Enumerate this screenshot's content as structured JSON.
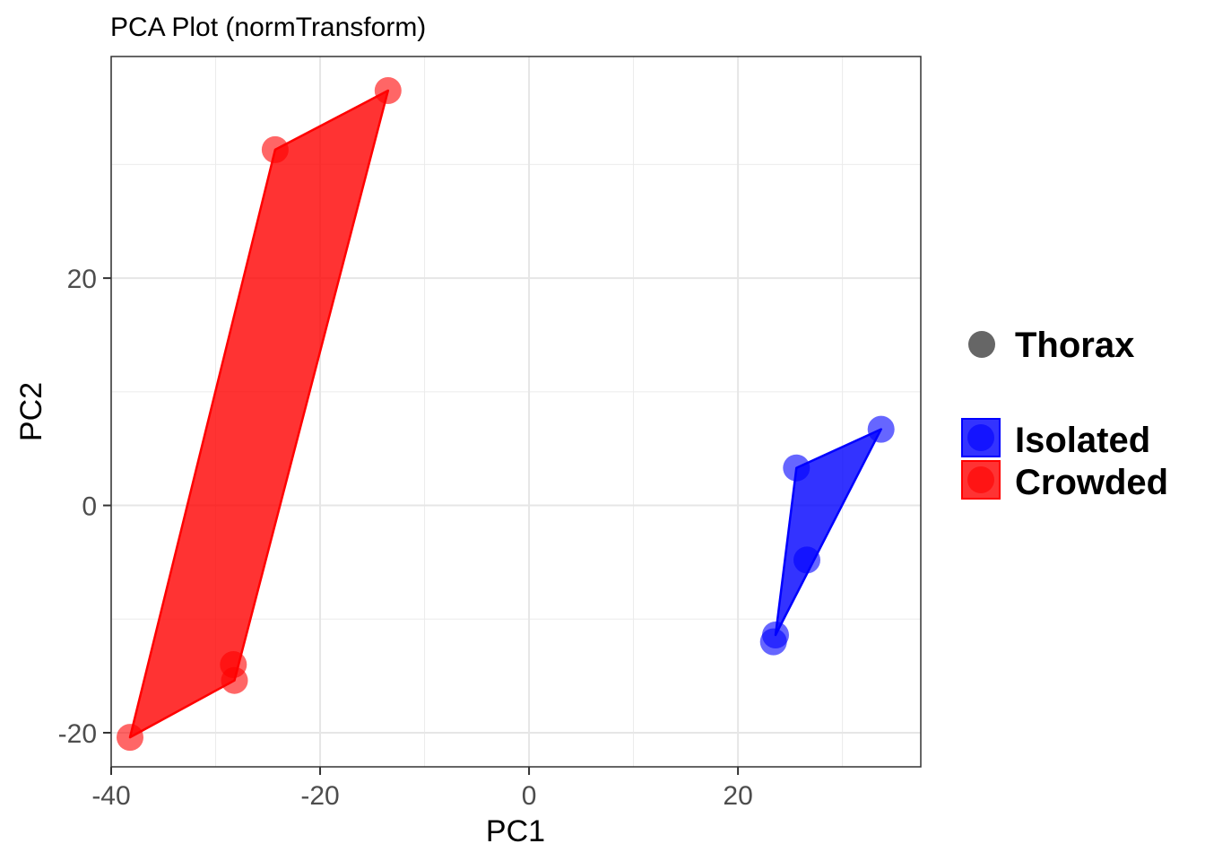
{
  "chart_data": {
    "type": "scatter",
    "title": "PCA Plot (normTransform)",
    "xlabel": "PC1",
    "ylabel": "PC2",
    "xlim": [
      -40,
      37.5
    ],
    "ylim": [
      -23,
      39.5
    ],
    "x_ticks": [
      -40,
      -20,
      0,
      20
    ],
    "y_ticks": [
      -20,
      0,
      20
    ],
    "x_tick_labels": [
      "-40",
      "-20",
      "0",
      "20"
    ],
    "y_tick_labels": [
      "-20",
      "0",
      "20"
    ],
    "grid": true,
    "legend_position": "right",
    "shape_legend": {
      "label": "Thorax",
      "color": "#666666"
    },
    "series": [
      {
        "name": "Isolated",
        "color": "#0000ff",
        "points": [
          [
            33.7,
            6.7
          ],
          [
            25.6,
            3.3
          ],
          [
            26.6,
            -4.8
          ],
          [
            23.6,
            -11.4
          ],
          [
            23.4,
            -12.0
          ]
        ],
        "hull": [
          [
            33.7,
            6.7
          ],
          [
            25.6,
            3.3
          ],
          [
            23.6,
            -11.4
          ]
        ]
      },
      {
        "name": "Crowded",
        "color": "#ff0000",
        "points": [
          [
            -13.5,
            36.5
          ],
          [
            -24.3,
            31.3
          ],
          [
            -28.3,
            -14.0
          ],
          [
            -28.2,
            -15.4
          ],
          [
            -38.2,
            -20.4
          ]
        ],
        "hull": [
          [
            -13.5,
            36.5
          ],
          [
            -24.3,
            31.3
          ],
          [
            -38.2,
            -20.4
          ],
          [
            -28.2,
            -15.4
          ]
        ]
      }
    ]
  }
}
